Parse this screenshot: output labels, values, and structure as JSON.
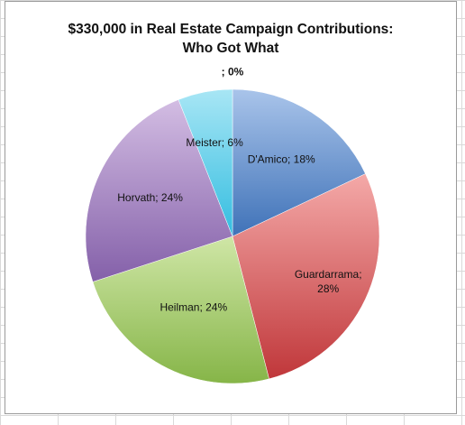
{
  "chart_data": {
    "type": "pie",
    "title": "$330,000 in Real Estate Campaign Contributions:",
    "subtitle": "Who Got What",
    "slices": [
      {
        "name": "",
        "value": 0,
        "label_lines": [
          "; 0%"
        ],
        "color_light": "#f2f2f2",
        "color_dark": "#bfbfbf"
      },
      {
        "name": "D'Amico",
        "value": 18,
        "label_lines": [
          "D'Amico; 18%"
        ],
        "color_light": "#a9c4ea",
        "color_dark": "#3f72b8"
      },
      {
        "name": "Guardarrama",
        "value": 28,
        "label_lines": [
          "Guardarrama;",
          "28%"
        ],
        "color_light": "#f4a9a8",
        "color_dark": "#c0373a"
      },
      {
        "name": "Heilman",
        "value": 24,
        "label_lines": [
          "Heilman; 24%"
        ],
        "color_light": "#cfe6a6",
        "color_dark": "#86b548"
      },
      {
        "name": "Horvath",
        "value": 24,
        "label_lines": [
          "Horvath; 24%"
        ],
        "color_light": "#d3bde3",
        "color_dark": "#8460a9"
      },
      {
        "name": "Meister",
        "value": 6,
        "label_lines": [
          "Meister; 6%"
        ],
        "color_light": "#a8e6f5",
        "color_dark": "#33bde0"
      }
    ]
  }
}
